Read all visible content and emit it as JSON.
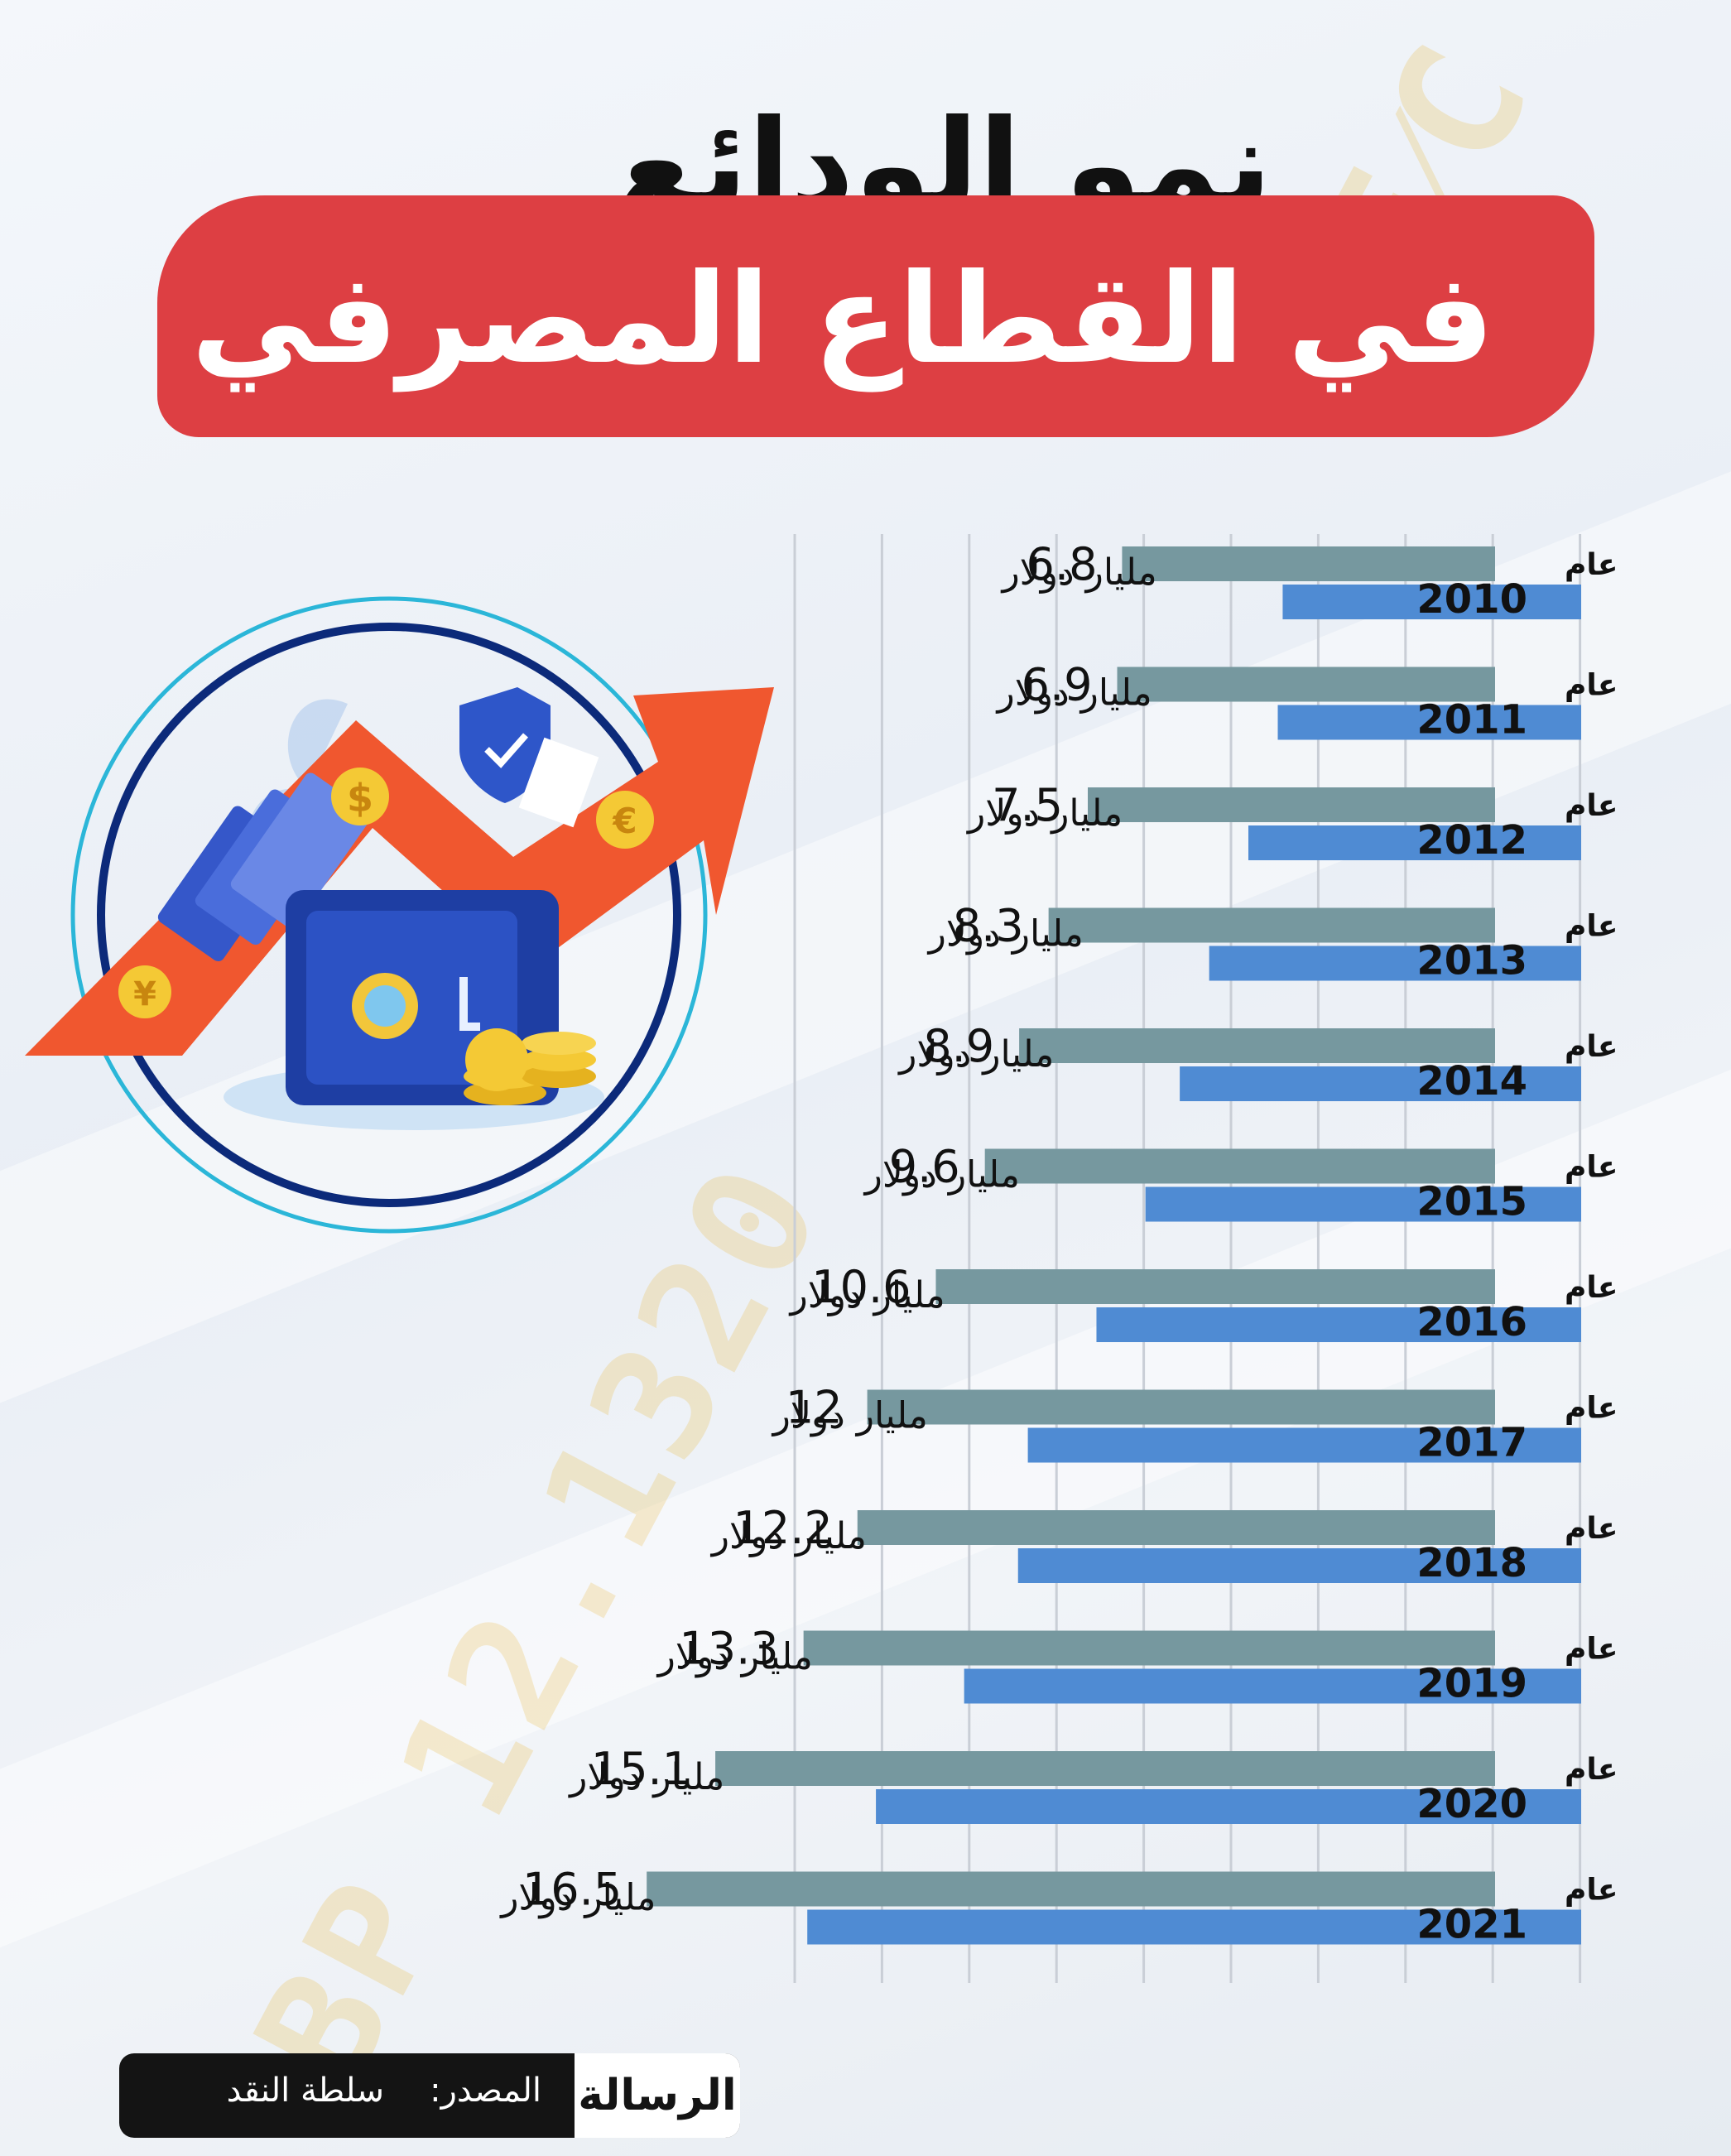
{
  "header": {
    "title": "نمو الودائع",
    "subtitle": "في القطاع المصرفي"
  },
  "colors": {
    "banner": "#dd3f43",
    "bar_primary": "#76989f",
    "bar_secondary": "#4f8bd3",
    "grid": "#c9ced6"
  },
  "footer": {
    "source_label": "المصدر:",
    "source_value": "سلطة النقد",
    "publisher": "الرسالة"
  },
  "chart_data": {
    "type": "bar",
    "orientation": "horizontal",
    "year_prefix": "عام",
    "unit": "مليار دولار",
    "categories": [
      "2010",
      "2011",
      "2012",
      "2013",
      "2014",
      "2015",
      "2016",
      "2017",
      "2018",
      "2019",
      "2020",
      "2021"
    ],
    "values": [
      6.8,
      6.9,
      7.5,
      8.3,
      8.9,
      9.6,
      10.6,
      12,
      12.2,
      13.3,
      15.1,
      16.5
    ],
    "value_labels": [
      "6.8",
      "6.9",
      "7.5",
      "8.3",
      "8.9",
      "9.6",
      "10.6",
      "12",
      "12.2",
      "13.3",
      "15.1",
      "16.5"
    ],
    "grid": true,
    "title": "",
    "xlabel": "",
    "ylabel": ""
  }
}
